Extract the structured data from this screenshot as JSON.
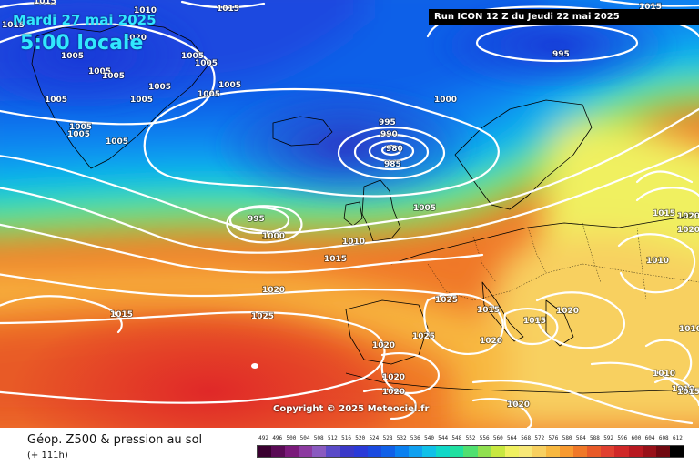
{
  "header": {
    "date_line": "Mardi 27 mai 2025",
    "time_line": "5:00 locale",
    "run_info": "Run ICON 12 Z du Jeudi 22 mai 2025"
  },
  "copyright": "Copyright © 2025 Meteociel.fr",
  "footer": {
    "title": "Géop. Z500 & pression au sol",
    "lead_time": "(+ 111h)"
  },
  "legend": {
    "levels": [
      {
        "label": "492",
        "color": "#3a0030"
      },
      {
        "label": "496",
        "color": "#5a0a55"
      },
      {
        "label": "500",
        "color": "#7a1a7a"
      },
      {
        "label": "504",
        "color": "#8c3aa0"
      },
      {
        "label": "508",
        "color": "#8a5ac0"
      },
      {
        "label": "512",
        "color": "#5a4ac8"
      },
      {
        "label": "516",
        "color": "#3a38c8"
      },
      {
        "label": "520",
        "color": "#2a3ad8"
      },
      {
        "label": "524",
        "color": "#1a4ae0"
      },
      {
        "label": "528",
        "color": "#1060e8"
      },
      {
        "label": "532",
        "color": "#0a80f0"
      },
      {
        "label": "536",
        "color": "#10a0f0"
      },
      {
        "label": "540",
        "color": "#10c0e8"
      },
      {
        "label": "544",
        "color": "#10d8c8"
      },
      {
        "label": "548",
        "color": "#20e0a0"
      },
      {
        "label": "552",
        "color": "#50e070"
      },
      {
        "label": "556",
        "color": "#90e050"
      },
      {
        "label": "560",
        "color": "#c8e840"
      },
      {
        "label": "564",
        "color": "#f0f060"
      },
      {
        "label": "568",
        "color": "#f8e878"
      },
      {
        "label": "572",
        "color": "#f8d060"
      },
      {
        "label": "576",
        "color": "#f8b840"
      },
      {
        "label": "580",
        "color": "#f89a30"
      },
      {
        "label": "584",
        "color": "#f07828"
      },
      {
        "label": "588",
        "color": "#e85a28"
      },
      {
        "label": "592",
        "color": "#e04030"
      },
      {
        "label": "596",
        "color": "#d02828"
      },
      {
        "label": "600",
        "color": "#b81820"
      },
      {
        "label": "604",
        "color": "#981018"
      },
      {
        "label": "608",
        "color": "#700810"
      },
      {
        "label": "612",
        "color": "#000000"
      }
    ]
  },
  "isobar_labels": [
    "1015",
    "1015",
    "1015",
    "1010",
    "1005",
    "1005",
    "1005",
    "1005",
    "1005",
    "1005",
    "1005",
    "1005",
    "1005",
    "1005",
    "1005",
    "1005",
    "1005",
    "1000",
    "995",
    "990",
    "985",
    "980",
    "995",
    "1000",
    "995",
    "1005",
    "1010",
    "1015",
    "1020",
    "1025",
    "1015",
    "1025",
    "1020",
    "1025",
    "1020",
    "1020",
    "1020",
    "1020",
    "1015",
    "1015",
    "1015",
    "1020",
    "1020",
    "1015",
    "1010",
    "1010",
    "1010",
    "1010",
    "1020",
    "1015",
    "1020"
  ]
}
